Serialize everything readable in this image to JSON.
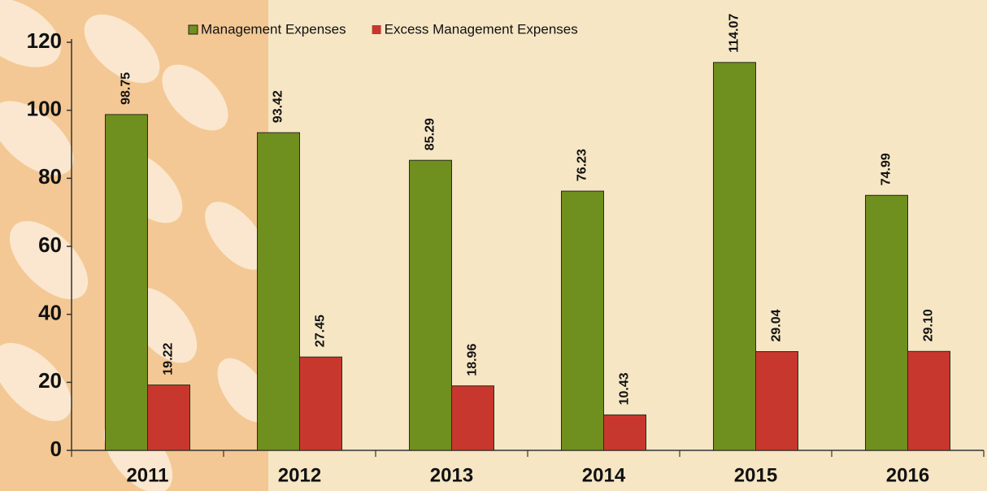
{
  "chart_data": {
    "type": "bar",
    "categories": [
      "2011",
      "2012",
      "2013",
      "2014",
      "2015",
      "2016"
    ],
    "series": [
      {
        "name": "Management Expenses",
        "color": "#6f8f1f",
        "values": [
          98.75,
          93.42,
          85.29,
          76.23,
          114.07,
          74.99
        ],
        "value_labels": [
          "98.75",
          "93.42",
          "85.29",
          "76.23",
          "114.07",
          "74.99"
        ]
      },
      {
        "name": "Excess Management Expenses",
        "color": "#c8372d",
        "values": [
          19.22,
          27.45,
          18.96,
          10.43,
          29.04,
          29.1
        ],
        "value_labels": [
          "19.22",
          "27.45",
          "18.96",
          "10.43",
          "29.04",
          "29.10"
        ]
      }
    ],
    "ylim": [
      0,
      120
    ],
    "yticks": [
      0,
      20,
      40,
      60,
      80,
      100,
      120
    ],
    "legend": "top"
  }
}
